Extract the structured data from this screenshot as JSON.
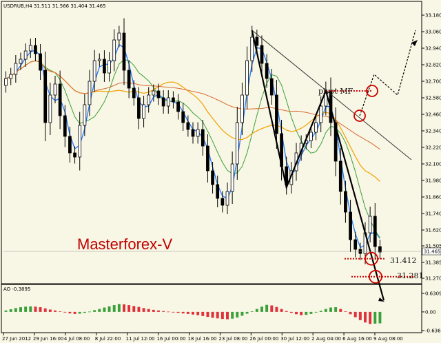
{
  "chart_data": {
    "type": "candlestick",
    "symbol_header": "USDRUB,H4  31.511 31.566 31.404 31.465",
    "watermark": "Masterforex-V",
    "price_axis": {
      "min": 31.25,
      "max": 33.27,
      "ticks": [
        "33.180",
        "33.060",
        "32.940",
        "32.820",
        "32.700",
        "32.580",
        "32.460",
        "32.340",
        "32.220",
        "32.100",
        "31.980",
        "31.860",
        "31.740",
        "31.620",
        "31.505",
        "31.385",
        "31.270"
      ],
      "current_price": "31.465"
    },
    "time_axis": {
      "labels": [
        "27 Jun 2012",
        "29 Jun 16:00",
        "4 Jul 08:00",
        "8 Jul 22:00",
        "11 Jul 12:00",
        "16 Jul 00:00",
        "18 Jul 16:00",
        "23 Jul 08:00",
        "26 Jul 00:00",
        "30 Jul 12:00",
        "2 Aug 04:00",
        "6 Aug 16:00",
        "9 Aug 08:00"
      ]
    },
    "closes": [
      32.72,
      32.75,
      32.83,
      32.86,
      32.92,
      32.96,
      32.9,
      32.78,
      32.4,
      32.6,
      32.68,
      32.45,
      32.3,
      32.18,
      32.15,
      32.38,
      32.53,
      32.7,
      32.85,
      32.86,
      32.76,
      32.85,
      33.0,
      33.05,
      32.78,
      32.65,
      32.58,
      32.43,
      32.53,
      32.6,
      32.63,
      32.58,
      32.52,
      32.58,
      32.55,
      32.48,
      32.4,
      32.35,
      32.3,
      32.35,
      32.23,
      32.05,
      31.95,
      31.85,
      31.8,
      31.9,
      32.1,
      32.4,
      32.6,
      32.85,
      33.02,
      32.96,
      32.83,
      32.72,
      32.6,
      32.32,
      32.08,
      31.95,
      32.05,
      32.18,
      32.25,
      32.27,
      32.33,
      32.4,
      32.52,
      32.63,
      32.4,
      32.12,
      31.9,
      31.75,
      31.55,
      31.48,
      31.45,
      31.6,
      31.72,
      31.5,
      31.46
    ],
    "annotations": {
      "pivot_label": "pivot MF",
      "level_1": "31.412",
      "level_2": "31.281"
    },
    "indicator": {
      "name": "AO",
      "label": "AO -0.3895",
      "ticks": [
        "0.6309",
        "0.00",
        "-0.6369"
      ],
      "min": -0.6369,
      "max": 0.6309,
      "values": [
        0.05,
        0.09,
        0.13,
        0.16,
        0.18,
        0.19,
        0.18,
        0.16,
        0.12,
        0.08,
        0.05,
        0.02,
        -0.02,
        -0.05,
        -0.07,
        -0.06,
        -0.03,
        0.01,
        0.06,
        0.1,
        0.15,
        0.19,
        0.23,
        0.27,
        0.26,
        0.23,
        0.2,
        0.17,
        0.13,
        0.1,
        0.07,
        0.05,
        0.03,
        0.01,
        -0.01,
        -0.03,
        -0.05,
        -0.07,
        -0.09,
        -0.11,
        -0.14,
        -0.17,
        -0.2,
        -0.22,
        -0.24,
        -0.25,
        -0.23,
        -0.19,
        -0.13,
        -0.06,
        0.02,
        0.1,
        0.18,
        0.24,
        0.22,
        0.17,
        0.1,
        0.03,
        -0.03,
        -0.08,
        -0.11,
        -0.1,
        -0.07,
        -0.02,
        0.04,
        0.1,
        0.15,
        0.16,
        0.1,
        0.02,
        -0.08,
        -0.18,
        -0.28,
        -0.36,
        -0.41,
        -0.4,
        -0.39
      ]
    },
    "colors": {
      "background": "#f8f6e4",
      "candle": "#000000",
      "ma_fast": "#2a7fff",
      "ma_green": "#3aa03a",
      "ma_orange": "#f2a000",
      "ma_slow": "#d86a30",
      "annotation": "#cc0000",
      "ao_up": "#3aa03a",
      "ao_down": "#e0303a"
    }
  }
}
